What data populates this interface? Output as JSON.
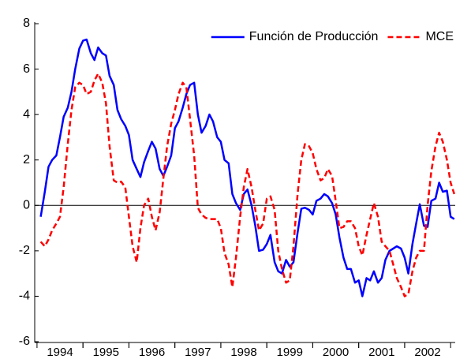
{
  "chart_data": {
    "type": "line",
    "x": [
      1994.08,
      1994.17,
      1994.25,
      1994.33,
      1994.42,
      1994.5,
      1994.58,
      1994.67,
      1994.75,
      1994.83,
      1994.92,
      1995,
      1995.08,
      1995.17,
      1995.25,
      1995.33,
      1995.42,
      1995.5,
      1995.58,
      1995.67,
      1995.75,
      1995.83,
      1995.92,
      1996,
      1996.08,
      1996.17,
      1996.25,
      1996.33,
      1996.42,
      1996.5,
      1996.58,
      1996.67,
      1996.75,
      1996.83,
      1996.92,
      1997,
      1997.08,
      1997.17,
      1997.25,
      1997.33,
      1997.42,
      1997.5,
      1997.58,
      1997.67,
      1997.75,
      1997.83,
      1997.92,
      1998,
      1998.08,
      1998.17,
      1998.25,
      1998.33,
      1998.42,
      1998.5,
      1998.58,
      1998.67,
      1998.75,
      1998.83,
      1998.92,
      1999,
      1999.08,
      1999.17,
      1999.25,
      1999.33,
      1999.42,
      1999.5,
      1999.58,
      1999.67,
      1999.75,
      1999.83,
      1999.92,
      2000,
      2000.08,
      2000.17,
      2000.25,
      2000.33,
      2000.42,
      2000.5,
      2000.58,
      2000.67,
      2000.75,
      2000.83,
      2000.92,
      2001,
      2001.08,
      2001.17,
      2001.25,
      2001.33,
      2001.42,
      2001.5,
      2001.58,
      2001.67,
      2001.75,
      2001.83,
      2001.92,
      2002,
      2002.08,
      2002.17,
      2002.25,
      2002.33,
      2002.42,
      2002.5,
      2002.58,
      2002.67,
      2002.75,
      2002.83,
      2002.92,
      2003,
      2003.08
    ],
    "series": [
      {
        "name": "Función de Producción",
        "color": "#0000ff",
        "dash": false,
        "values": [
          -0.5,
          0.6,
          1.7,
          2.0,
          2.2,
          3.0,
          3.9,
          4.3,
          5.0,
          6.0,
          6.9,
          7.25,
          7.3,
          6.7,
          6.4,
          6.95,
          6.7,
          6.6,
          5.7,
          5.3,
          4.2,
          3.8,
          3.5,
          3.1,
          2.0,
          1.6,
          1.25,
          1.9,
          2.4,
          2.8,
          2.5,
          1.6,
          1.3,
          1.7,
          2.2,
          3.4,
          3.7,
          4.3,
          4.9,
          5.3,
          5.4,
          4.0,
          3.2,
          3.5,
          4.0,
          3.7,
          3.0,
          2.8,
          2.0,
          1.85,
          0.5,
          0.1,
          -0.2,
          0.5,
          0.7,
          0.0,
          -0.9,
          -2.0,
          -1.95,
          -1.7,
          -1.3,
          -2.5,
          -2.9,
          -3.0,
          -2.4,
          -2.7,
          -2.5,
          -1.2,
          -0.15,
          -0.1,
          -0.2,
          -0.4,
          0.2,
          0.3,
          0.5,
          0.4,
          0.1,
          -0.4,
          -1.4,
          -2.3,
          -2.8,
          -2.8,
          -3.4,
          -3.3,
          -4.0,
          -3.2,
          -3.3,
          -2.9,
          -3.4,
          -3.2,
          -2.4,
          -2.0,
          -1.9,
          -1.8,
          -1.9,
          -2.3,
          -3.0,
          -1.7,
          -0.8,
          0.05,
          -0.9,
          -0.95,
          0.2,
          0.3,
          1.0,
          0.6,
          0.65,
          -0.5,
          -0.6
        ]
      },
      {
        "name": "MCE",
        "color": "#ff0000",
        "dash": true,
        "values": [
          -1.6,
          -1.8,
          -1.5,
          -1.1,
          -0.8,
          -0.5,
          0.8,
          2.7,
          4.2,
          5.2,
          5.4,
          5.3,
          4.9,
          5.0,
          5.5,
          5.8,
          5.4,
          4.5,
          2.6,
          1.1,
          1.0,
          1.05,
          0.8,
          -0.5,
          -1.8,
          -2.5,
          -1.0,
          0.0,
          0.3,
          -0.5,
          -1.1,
          -0.3,
          1.2,
          2.6,
          3.6,
          4.2,
          4.9,
          5.4,
          5.2,
          3.8,
          2.2,
          -0.1,
          -0.4,
          -0.55,
          -0.6,
          -0.6,
          -0.6,
          -1.0,
          -2.1,
          -2.6,
          -3.6,
          -2.3,
          -0.5,
          0.8,
          1.6,
          0.8,
          -0.2,
          -1.1,
          -0.8,
          0.3,
          0.4,
          -0.2,
          -2.0,
          -2.8,
          -3.4,
          -3.3,
          -1.8,
          0.5,
          2.0,
          2.7,
          2.6,
          2.3,
          1.6,
          1.1,
          1.2,
          1.6,
          1.3,
          0.2,
          -1.0,
          -0.95,
          -0.7,
          -0.7,
          -1.0,
          -1.8,
          -2.2,
          -1.3,
          -0.6,
          0.1,
          -0.5,
          -1.6,
          -1.8,
          -2.0,
          -2.6,
          -3.2,
          -3.6,
          -4.0,
          -3.9,
          -2.9,
          -2.3,
          -2.0,
          -2.0,
          0.0,
          1.5,
          2.6,
          3.2,
          2.8,
          2.0,
          1.0,
          0.5
        ]
      }
    ],
    "xlim": [
      1993.95,
      2003.1
    ],
    "xticks": [
      {
        "value": 1994.5,
        "label": "1994"
      },
      {
        "value": 1995.5,
        "label": "1995"
      },
      {
        "value": 1996.5,
        "label": "1996"
      },
      {
        "value": 1997.5,
        "label": "1997"
      },
      {
        "value": 1998.5,
        "label": "1998"
      },
      {
        "value": 1999.5,
        "label": "1999"
      },
      {
        "value": 2000.5,
        "label": "2000"
      },
      {
        "value": 2001.5,
        "label": "2001"
      },
      {
        "value": 2002.5,
        "label": "2002"
      }
    ],
    "ylim": [
      -6,
      8
    ],
    "yticks": [
      -6,
      -4,
      -2,
      0,
      2,
      4,
      6,
      8
    ],
    "zero_line": true,
    "legend": "top-right"
  }
}
